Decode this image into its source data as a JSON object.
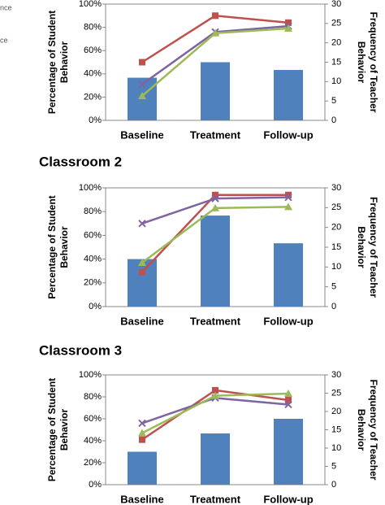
{
  "cropped_legend_text": [
    "nce",
    "ce"
  ],
  "chart_data": [
    {
      "type": "bar",
      "ylabel": [
        "Percentage of Student",
        "Behavior"
      ],
      "y2label": [
        "Frequency of Teacher",
        "Behavior"
      ],
      "categories": [
        "Baseline",
        "Treatment",
        "Follow-up"
      ],
      "ylim": [
        0,
        100
      ],
      "yticks": [
        {
          "value": 0,
          "label": "0%"
        },
        {
          "value": 20,
          "label": "20%"
        },
        {
          "value": 40,
          "label": "40%"
        },
        {
          "value": 60,
          "label": "60%"
        },
        {
          "value": 80,
          "label": "80%"
        },
        {
          "value": 100,
          "label": "100%"
        }
      ],
      "y2lim": [
        0,
        30
      ],
      "y2ticks": [
        0,
        5,
        10,
        15,
        20,
        25,
        30
      ],
      "series": [
        {
          "type": "bar",
          "axis": "y2",
          "color": "#4f81bd",
          "values": [
            11,
            15,
            13
          ]
        },
        {
          "type": "line",
          "color": "#c0504d",
          "marker": "square",
          "values": [
            50,
            90,
            84
          ]
        },
        {
          "type": "line",
          "color": "#8064a2",
          "marker": "x",
          "values": [
            31,
            76,
            81
          ]
        },
        {
          "type": "line",
          "color": "#9bbb59",
          "marker": "triangle",
          "values": [
            21,
            75,
            79
          ]
        }
      ]
    },
    {
      "type": "bar",
      "title": "Classroom 2",
      "ylabel": [
        "Percentage of Student",
        "Behavior"
      ],
      "y2label": [
        "Frequency of Teacher",
        "Behavior"
      ],
      "categories": [
        "Baseline",
        "Treatment",
        "Follow-up"
      ],
      "ylim": [
        0,
        100
      ],
      "yticks": [
        {
          "value": 0,
          "label": "0%"
        },
        {
          "value": 20,
          "label": "20%"
        },
        {
          "value": 40,
          "label": "40%"
        },
        {
          "value": 60,
          "label": "60%"
        },
        {
          "value": 80,
          "label": "80%"
        },
        {
          "value": 100,
          "label": "100%"
        }
      ],
      "y2lim": [
        0,
        30
      ],
      "y2ticks": [
        0,
        5,
        10,
        15,
        20,
        25,
        30
      ],
      "series": [
        {
          "type": "bar",
          "axis": "y2",
          "color": "#4f81bd",
          "values": [
            12,
            23,
            16
          ]
        },
        {
          "type": "line",
          "color": "#c0504d",
          "marker": "square",
          "values": [
            29,
            94,
            94
          ]
        },
        {
          "type": "line",
          "color": "#8064a2",
          "marker": "x",
          "values": [
            70,
            91,
            92
          ]
        },
        {
          "type": "line",
          "color": "#9bbb59",
          "marker": "triangle",
          "values": [
            37,
            83,
            84
          ]
        }
      ]
    },
    {
      "type": "bar",
      "title": "Classroom 3",
      "ylabel": [
        "Percentage of Student",
        "Behavior"
      ],
      "y2label": [
        "Frequency of Teacher",
        "Behavior"
      ],
      "categories": [
        "Baseline",
        "Treatment",
        "Follow-up"
      ],
      "ylim": [
        0,
        100
      ],
      "yticks": [
        {
          "value": 0,
          "label": "0%"
        },
        {
          "value": 20,
          "label": "20%"
        },
        {
          "value": 40,
          "label": "40%"
        },
        {
          "value": 60,
          "label": "60%"
        },
        {
          "value": 80,
          "label": "80%"
        },
        {
          "value": 100,
          "label": "100%"
        }
      ],
      "y2lim": [
        0,
        30
      ],
      "y2ticks": [
        0,
        5,
        10,
        15,
        20,
        25,
        30
      ],
      "series": [
        {
          "type": "bar",
          "axis": "y2",
          "color": "#4f81bd",
          "values": [
            9,
            14,
            18
          ]
        },
        {
          "type": "line",
          "color": "#c0504d",
          "marker": "square",
          "values": [
            41,
            86,
            77
          ]
        },
        {
          "type": "line",
          "color": "#8064a2",
          "marker": "x",
          "values": [
            56,
            79,
            73
          ]
        },
        {
          "type": "line",
          "color": "#9bbb59",
          "marker": "triangle",
          "values": [
            47,
            81,
            83
          ]
        }
      ]
    }
  ]
}
